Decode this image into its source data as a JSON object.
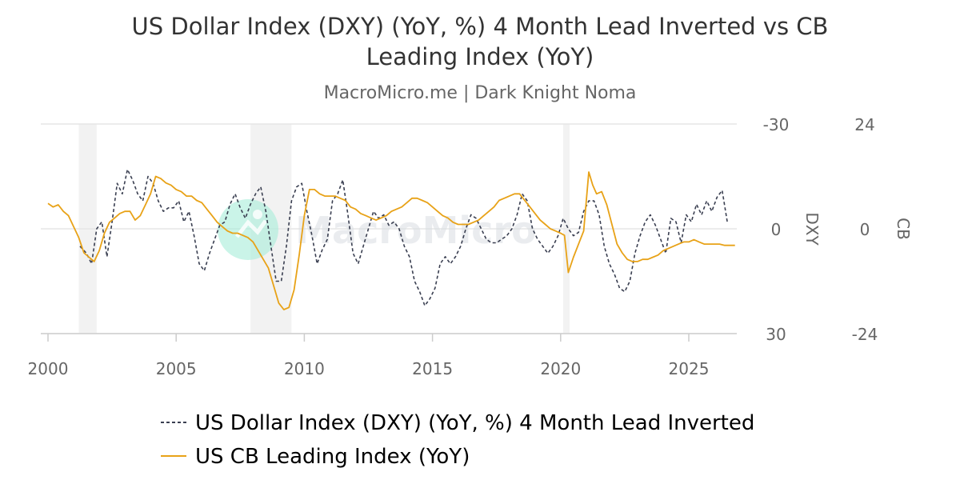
{
  "chart_data": {
    "type": "line",
    "title_line1": "US Dollar Index (DXY) (YoY, %) 4 Month Lead Inverted vs CB",
    "title_line2": "Leading Index (YoY)",
    "subtitle": "MacroMicro.me | Dark Knight Noma",
    "watermark": "MacroMicro",
    "x_ticks": [
      "2000",
      "2005",
      "2010",
      "2015",
      "2020",
      "2025"
    ],
    "xlim": [
      2000,
      2027
    ],
    "left_axis": {
      "label": "DXY",
      "ticks": [
        "-30",
        "0",
        "30"
      ],
      "ylim": [
        -30,
        30
      ],
      "inverted": true
    },
    "right_axis": {
      "label": "CB",
      "ticks": [
        "24",
        "0",
        "-24"
      ],
      "ylim": [
        -24,
        24
      ]
    },
    "recessions": [
      [
        2001.2,
        2001.9
      ],
      [
        2007.9,
        2009.5
      ],
      [
        2020.1,
        2020.35
      ]
    ],
    "grid": true,
    "legend_position": "bottom",
    "colors": {
      "dxy": "#3a3f51",
      "cb": "#e8a217",
      "recession": "#f2f2f2",
      "grid": "#e6e6e6",
      "axis": "#cccccc"
    },
    "series": [
      {
        "name": "US Dollar Index (DXY) (YoY, %) 4 Month Lead Inverted",
        "axis": "left",
        "style": "dashed",
        "x": [
          2001.25,
          2001.5,
          2001.7,
          2001.9,
          2002.1,
          2002.3,
          2002.5,
          2002.7,
          2002.9,
          2003.1,
          2003.3,
          2003.5,
          2003.7,
          2003.9,
          2004.1,
          2004.3,
          2004.5,
          2004.7,
          2004.9,
          2005.1,
          2005.3,
          2005.5,
          2005.7,
          2005.9,
          2006.1,
          2006.3,
          2006.5,
          2006.7,
          2006.9,
          2007.1,
          2007.3,
          2007.5,
          2007.7,
          2007.9,
          2008.1,
          2008.3,
          2008.5,
          2008.7,
          2008.9,
          2009.1,
          2009.3,
          2009.5,
          2009.7,
          2009.9,
          2010.1,
          2010.3,
          2010.5,
          2010.7,
          2010.9,
          2011.1,
          2011.3,
          2011.5,
          2011.7,
          2011.9,
          2012.1,
          2012.3,
          2012.5,
          2012.7,
          2012.9,
          2013.1,
          2013.3,
          2013.5,
          2013.7,
          2013.9,
          2014.1,
          2014.3,
          2014.5,
          2014.7,
          2014.9,
          2015.1,
          2015.3,
          2015.5,
          2015.7,
          2015.9,
          2016.1,
          2016.3,
          2016.5,
          2016.7,
          2016.9,
          2017.1,
          2017.3,
          2017.5,
          2017.7,
          2017.9,
          2018.1,
          2018.3,
          2018.5,
          2018.7,
          2018.9,
          2019.1,
          2019.3,
          2019.5,
          2019.7,
          2019.9,
          2020.1,
          2020.3,
          2020.5,
          2020.7,
          2020.9,
          2021.1,
          2021.3,
          2021.5,
          2021.7,
          2021.9,
          2022.1,
          2022.3,
          2022.5,
          2022.7,
          2022.9,
          2023.1,
          2023.3,
          2023.5,
          2023.7,
          2023.9,
          2024.1,
          2024.3,
          2024.5,
          2024.7,
          2024.9,
          2025.1,
          2025.3,
          2025.5,
          2025.7,
          2025.9,
          2026.1,
          2026.3,
          2026.5
        ],
        "values": [
          5,
          7,
          10,
          0,
          -2,
          8,
          -2,
          -13,
          -10,
          -17,
          -14,
          -10,
          -8,
          -15,
          -13,
          -8,
          -5,
          -6,
          -6,
          -8,
          -2,
          -5,
          2,
          10,
          12,
          7,
          3,
          -1,
          -2,
          -7,
          -10,
          -6,
          -3,
          -7,
          -10,
          -12,
          -5,
          5,
          15,
          15,
          5,
          -8,
          -12,
          -13,
          -5,
          2,
          10,
          6,
          3,
          -8,
          -10,
          -14,
          -4,
          7,
          10,
          5,
          0,
          -5,
          -3,
          -4,
          -1,
          -2,
          0,
          5,
          8,
          15,
          18,
          22,
          20,
          17,
          10,
          8,
          10,
          8,
          5,
          0,
          -4,
          -3,
          0,
          3,
          4,
          4,
          3,
          2,
          0,
          -4,
          -10,
          -8,
          0,
          3,
          5,
          7,
          5,
          2,
          -3,
          0,
          2,
          1,
          -5,
          -8,
          -8,
          -4,
          5,
          10,
          13,
          17,
          18,
          15,
          7,
          2,
          -2,
          -4,
          -1,
          3,
          7,
          -3,
          -2,
          4,
          -4,
          -2,
          -7,
          -4,
          -8,
          -5,
          -9,
          -11,
          -2
        ]
      },
      {
        "name": "US CB Leading Index (YoY)",
        "axis": "right",
        "style": "solid",
        "x": [
          2000.0,
          2000.2,
          2000.4,
          2000.6,
          2000.8,
          2001.0,
          2001.2,
          2001.4,
          2001.6,
          2001.8,
          2002.0,
          2002.2,
          2002.4,
          2002.6,
          2002.8,
          2003.0,
          2003.2,
          2003.4,
          2003.6,
          2003.8,
          2004.0,
          2004.2,
          2004.4,
          2004.6,
          2004.8,
          2005.0,
          2005.2,
          2005.4,
          2005.6,
          2005.8,
          2006.0,
          2006.2,
          2006.4,
          2006.6,
          2006.8,
          2007.0,
          2007.2,
          2007.4,
          2007.6,
          2007.8,
          2008.0,
          2008.2,
          2008.4,
          2008.6,
          2008.8,
          2009.0,
          2009.2,
          2009.4,
          2009.6,
          2009.8,
          2010.0,
          2010.2,
          2010.4,
          2010.6,
          2010.8,
          2011.0,
          2011.2,
          2011.4,
          2011.6,
          2011.8,
          2012.0,
          2012.2,
          2012.4,
          2012.6,
          2012.8,
          2013.0,
          2013.2,
          2013.4,
          2013.6,
          2013.8,
          2014.0,
          2014.2,
          2014.4,
          2014.6,
          2014.8,
          2015.0,
          2015.2,
          2015.4,
          2015.6,
          2015.8,
          2016.0,
          2016.2,
          2016.4,
          2016.6,
          2016.8,
          2017.0,
          2017.2,
          2017.4,
          2017.6,
          2017.8,
          2018.0,
          2018.2,
          2018.4,
          2018.6,
          2018.8,
          2019.0,
          2019.2,
          2019.4,
          2019.6,
          2019.8,
          2020.0,
          2020.15,
          2020.3,
          2020.5,
          2020.7,
          2020.9,
          2021.1,
          2021.25,
          2021.4,
          2021.6,
          2021.8,
          2022.0,
          2022.2,
          2022.4,
          2022.6,
          2022.8,
          2023.0,
          2023.2,
          2023.4,
          2023.6,
          2023.8,
          2024.0,
          2024.2,
          2024.4,
          2024.6,
          2024.8,
          2025.0,
          2025.2,
          2025.4,
          2025.6,
          2025.8,
          2026.0,
          2026.2,
          2026.4,
          2026.6,
          2026.8
        ],
        "values": [
          5.8,
          5.0,
          5.5,
          4.0,
          3.0,
          0.5,
          -2.0,
          -5.5,
          -6.5,
          -7.5,
          -5.0,
          -1.0,
          1.5,
          2.5,
          3.5,
          4.0,
          4.0,
          2.0,
          3.0,
          5.5,
          8.0,
          12.0,
          11.5,
          10.5,
          10.0,
          9.0,
          8.5,
          7.5,
          7.5,
          6.5,
          6.0,
          4.5,
          3.0,
          1.5,
          0.5,
          -0.5,
          -1.0,
          -1.0,
          -1.5,
          -2.0,
          -3.0,
          -5.0,
          -7.0,
          -9.0,
          -13.0,
          -17.0,
          -18.5,
          -18.0,
          -14.0,
          -6.0,
          3.0,
          9.0,
          9.0,
          8.0,
          7.5,
          7.5,
          7.5,
          7.0,
          6.5,
          5.0,
          4.5,
          3.5,
          3.0,
          2.5,
          2.0,
          2.5,
          3.0,
          4.0,
          4.5,
          5.0,
          6.0,
          7.0,
          7.0,
          6.5,
          6.0,
          5.0,
          4.0,
          3.0,
          2.5,
          1.5,
          1.0,
          1.0,
          1.0,
          1.5,
          2.0,
          3.0,
          4.0,
          5.0,
          6.5,
          7.0,
          7.5,
          8.0,
          8.0,
          6.5,
          5.0,
          3.5,
          2.0,
          1.0,
          0.0,
          -0.5,
          -1.0,
          -1.5,
          -10.0,
          -6.5,
          -3.5,
          -0.5,
          13.0,
          10.0,
          8.0,
          8.5,
          5.5,
          1.0,
          -3.5,
          -5.5,
          -7.0,
          -7.5,
          -7.5,
          -7.0,
          -7.0,
          -6.5,
          -6.0,
          -5.0,
          -4.5,
          -4.0,
          -3.5,
          -3.0,
          -3.0,
          -2.5,
          -3.0,
          -3.5,
          -3.5,
          -3.5,
          -3.5,
          -3.8,
          -3.8,
          -3.8
        ]
      }
    ]
  }
}
